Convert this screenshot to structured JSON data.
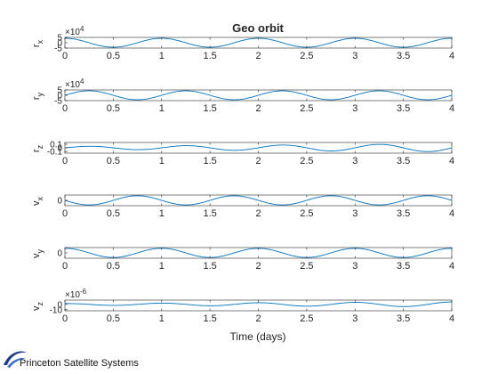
{
  "chart_data": {
    "type": "line",
    "title": "Geo orbit",
    "xlabel": "Time (days)",
    "xlim": [
      0,
      4
    ],
    "x_ticks": [
      "0",
      "0.5",
      "1",
      "1.5",
      "2",
      "2.5",
      "3",
      "3.5",
      "4"
    ],
    "grid": false,
    "line_color": "#0072BD",
    "panels": [
      {
        "ylabel_main": "r",
        "ylabel_sub": "x",
        "exponent_base": "×10",
        "exponent": "4",
        "ylim": [
          -5,
          5
        ],
        "y_ticks": [
          {
            "v": 5,
            "t": "5"
          },
          {
            "v": 0,
            "t": "0"
          },
          {
            "v": -5,
            "t": "-5"
          }
        ],
        "series": {
          "amplitude": 4.2,
          "period": 1.0,
          "phase_shift": 0.0,
          "kind": "cos",
          "growth": 0
        }
      },
      {
        "ylabel_main": "r",
        "ylabel_sub": "y",
        "exponent_base": "×10",
        "exponent": "4",
        "ylim": [
          -5,
          5
        ],
        "y_ticks": [
          {
            "v": 5,
            "t": "5"
          },
          {
            "v": 0,
            "t": "0"
          },
          {
            "v": -5,
            "t": "-5"
          }
        ],
        "series": {
          "amplitude": 4.2,
          "period": 1.0,
          "phase_shift": 0.0,
          "kind": "sin",
          "growth": 0
        }
      },
      {
        "ylabel_main": "r",
        "ylabel_sub": "z",
        "exponent_base": "",
        "exponent": "",
        "ylim": [
          -0.15,
          0.15
        ],
        "y_ticks": [
          {
            "v": 0.1,
            "t": "0.1"
          },
          {
            "v": 0,
            "t": "0"
          },
          {
            "v": -0.1,
            "t": "-0.1"
          }
        ],
        "series": {
          "amplitude": 0.11,
          "period": 1.0,
          "phase_shift": 0.0,
          "kind": "sin",
          "growth": 1
        }
      },
      {
        "ylabel_main": "v",
        "ylabel_sub": "x",
        "exponent_base": "",
        "exponent": "",
        "ylim": [
          -3.5,
          3.5
        ],
        "y_ticks": [
          {
            "v": 0,
            "t": "0"
          }
        ],
        "series": {
          "amplitude": 3.0,
          "period": 1.0,
          "phase_shift": 0.0,
          "kind": "-sin",
          "growth": 0
        }
      },
      {
        "ylabel_main": "v",
        "ylabel_sub": "y",
        "exponent_base": "",
        "exponent": "",
        "ylim": [
          -3.5,
          3.5
        ],
        "y_ticks": [
          {
            "v": 0,
            "t": "0"
          }
        ],
        "series": {
          "amplitude": 3.0,
          "period": 1.0,
          "phase_shift": 0.0,
          "kind": "cos",
          "growth": 0
        }
      },
      {
        "ylabel_main": "v",
        "ylabel_sub": "z",
        "exponent_base": "×10",
        "exponent": "-6",
        "ylim": [
          -12,
          8
        ],
        "y_ticks": [
          {
            "v": 0,
            "t": "0"
          },
          {
            "v": -10,
            "t": "-10"
          }
        ],
        "series": {
          "amplitude": 4.5,
          "period": 1.0,
          "phase_shift": 0.0,
          "kind": "cos",
          "growth": 1
        }
      }
    ]
  },
  "footer": {
    "company": "Princeton Satellite Systems"
  }
}
